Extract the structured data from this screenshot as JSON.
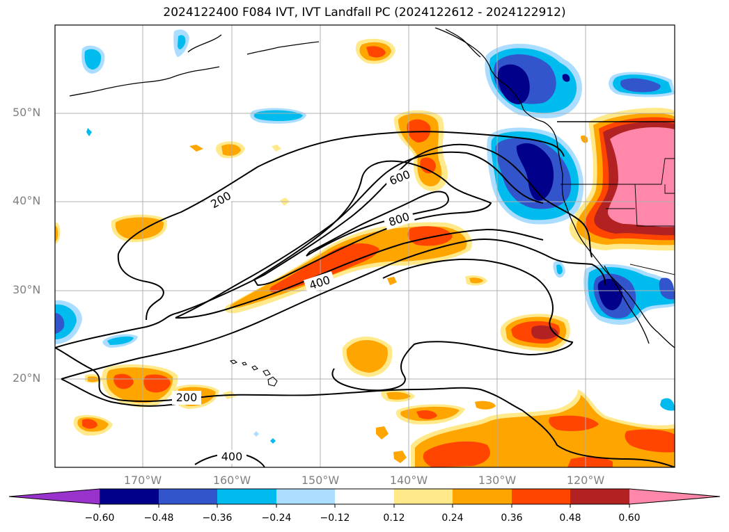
{
  "title": "2024122400 F084 IVT, IVT Landfall PC (2024122612 - 2024122912)",
  "map": {
    "lat_labels": [
      "50°N",
      "40°N",
      "30°N",
      "20°N"
    ],
    "lon_labels": [
      "170°W",
      "160°W",
      "150°W",
      "140°W",
      "130°W",
      "120°W"
    ],
    "contour_labels": [
      "200",
      "600",
      "800",
      "400",
      "200",
      "400"
    ],
    "gridlines": true
  },
  "colorbar": {
    "ticks": [
      "−0.60",
      "−0.48",
      "−0.36",
      "−0.24",
      "−0.12",
      "0.12",
      "0.24",
      "0.36",
      "0.48",
      "0.60"
    ],
    "colors": {
      "below_min": "#9933cc",
      "n60": "#00008b",
      "n48": "#3355cc",
      "n36": "#00bbee",
      "n24": "#aaddff",
      "zero": "#ffffff",
      "p12": "#ffe98a",
      "p24": "#ffa500",
      "p36": "#ff4500",
      "p48": "#b22222",
      "above_max": "#ff88aa"
    }
  }
}
